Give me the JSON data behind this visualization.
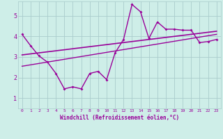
{
  "xlabel": "Windchill (Refroidissement éolien,°C)",
  "background_color": "#ceeee8",
  "line_color": "#990099",
  "grid_color": "#aacccc",
  "ylim": [
    0.5,
    5.7
  ],
  "xlim": [
    -0.5,
    23.5
  ],
  "yticks": [
    1,
    2,
    3,
    4,
    5
  ],
  "xticks": [
    0,
    1,
    2,
    3,
    4,
    5,
    6,
    7,
    8,
    9,
    10,
    11,
    12,
    13,
    14,
    15,
    16,
    17,
    18,
    19,
    20,
    21,
    22,
    23
  ],
  "main_x": [
    0,
    1,
    2,
    3,
    4,
    5,
    6,
    7,
    8,
    9,
    10,
    11,
    12,
    13,
    14,
    15,
    16,
    17,
    18,
    19,
    20,
    21,
    22,
    23
  ],
  "main_y": [
    4.1,
    3.55,
    3.05,
    2.75,
    2.2,
    1.45,
    1.55,
    1.45,
    2.2,
    2.3,
    1.9,
    3.2,
    3.85,
    5.55,
    5.2,
    3.9,
    4.7,
    4.35,
    4.35,
    4.3,
    4.3,
    3.7,
    3.75,
    3.85
  ],
  "trend1_x": [
    0,
    23
  ],
  "trend1_y": [
    3.1,
    4.25
  ],
  "trend2_x": [
    0,
    23
  ],
  "trend2_y": [
    2.55,
    4.1
  ]
}
